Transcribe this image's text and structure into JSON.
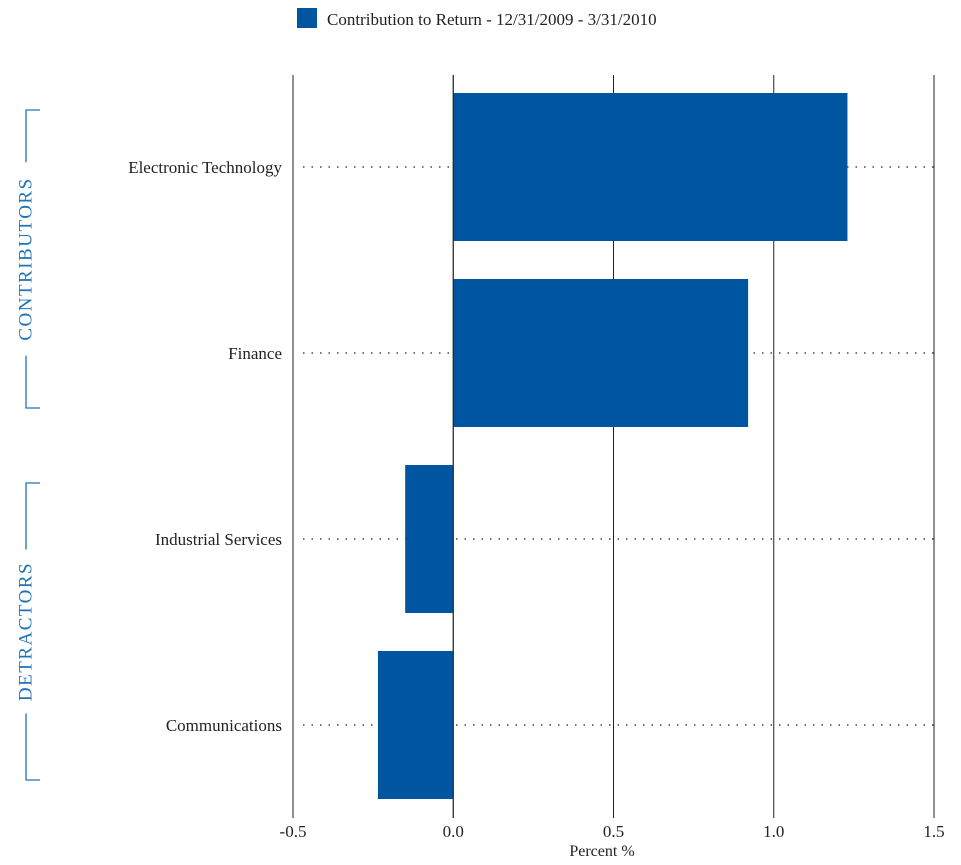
{
  "chart_data": {
    "type": "bar",
    "orientation": "horizontal",
    "legend": {
      "label": "Contribution to Return - 12/31/2009 - 3/31/2010",
      "placement": "top-center"
    },
    "categories": [
      "Electronic Technology",
      "Finance",
      "Industrial Services",
      "Communications"
    ],
    "series": [
      {
        "name": "Contribution to Return - 12/31/2009 - 3/31/2010",
        "values": [
          1.23,
          0.92,
          -0.15,
          -0.235
        ]
      }
    ],
    "xlabel": "Percent %",
    "xlim": [
      -0.5,
      1.5
    ],
    "x_ticks": [
      "-0.5",
      "0.0",
      "0.5",
      "1.0",
      "1.5"
    ],
    "x_tick_values": [
      -0.5,
      0,
      0.5,
      1,
      1.5
    ],
    "grid": {
      "vertical": true,
      "horizontal_dotted": true
    },
    "groups": [
      {
        "label": "CONTRIBUTORS",
        "categories": [
          "Electronic Technology",
          "Finance"
        ]
      },
      {
        "label": "DETRACTORS",
        "categories": [
          "Industrial Services",
          "Communications"
        ]
      }
    ],
    "colors": {
      "bar": "#0055a0",
      "group_label": "#1e73b9",
      "grid": "#222222",
      "text": "#222222"
    }
  }
}
